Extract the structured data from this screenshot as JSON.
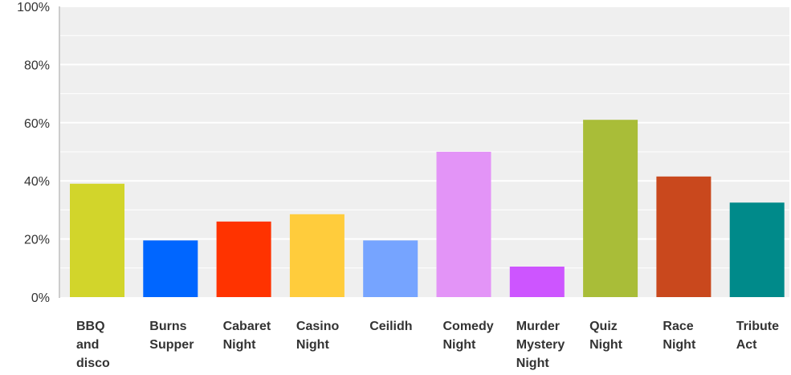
{
  "chart_data": {
    "type": "bar",
    "categories": [
      [
        "BBQ",
        "and",
        "disco"
      ],
      [
        "Burns",
        "Supper"
      ],
      [
        "Cabaret",
        "Night"
      ],
      [
        "Casino",
        "Night"
      ],
      [
        "Ceilidh"
      ],
      [
        "Comedy",
        "Night"
      ],
      [
        "Murder",
        "Mystery",
        "Night"
      ],
      [
        "Quiz",
        "Night"
      ],
      [
        "Race",
        "Night"
      ],
      [
        "Tribute",
        "Act"
      ]
    ],
    "values": [
      39,
      19.5,
      26,
      28.5,
      19.5,
      50,
      10.5,
      61,
      41.5,
      32.5
    ],
    "colors": [
      "#d2d52b",
      "#0066ff",
      "#ff3300",
      "#ffcc3c",
      "#76a4ff",
      "#e394f7",
      "#cd55ff",
      "#a9bd38",
      "#c9481d",
      "#008a8a"
    ],
    "ylim": [
      0,
      100
    ],
    "yticks": [
      "0%",
      "20%",
      "40%",
      "60%",
      "80%",
      "100%"
    ],
    "ytick_values": [
      0,
      20,
      40,
      60,
      80,
      100
    ],
    "grid": true
  }
}
